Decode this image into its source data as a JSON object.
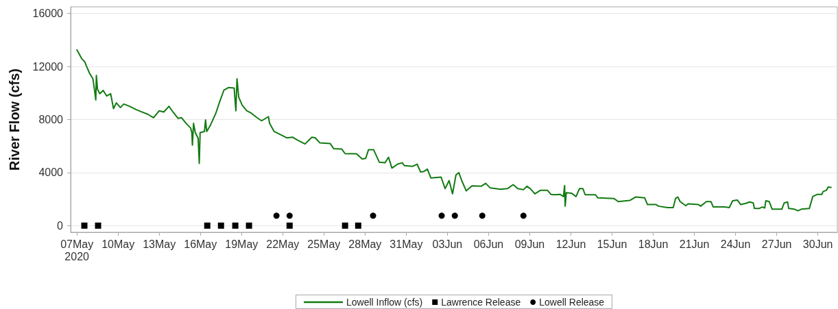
{
  "chart_data": {
    "type": "line",
    "ylabel": "River Flow (cfs)",
    "xlim": [
      "2020-05-06T13:00",
      "2020-07-01T10:00"
    ],
    "xticks": [
      {
        "value": "2020-05-07",
        "label": "07May\n2020"
      },
      {
        "value": "2020-05-10",
        "label": "10May"
      },
      {
        "value": "2020-05-13",
        "label": "13May"
      },
      {
        "value": "2020-05-16",
        "label": "16May"
      },
      {
        "value": "2020-05-19",
        "label": "19May"
      },
      {
        "value": "2020-05-22",
        "label": "22May"
      },
      {
        "value": "2020-05-25",
        "label": "25May"
      },
      {
        "value": "2020-05-28",
        "label": "28May"
      },
      {
        "value": "2020-05-31",
        "label": "31May"
      },
      {
        "value": "2020-06-03",
        "label": "03Jun"
      },
      {
        "value": "2020-06-06",
        "label": "06Jun"
      },
      {
        "value": "2020-06-09",
        "label": "09Jun"
      },
      {
        "value": "2020-06-12",
        "label": "12Jun"
      },
      {
        "value": "2020-06-15",
        "label": "15Jun"
      },
      {
        "value": "2020-06-18",
        "label": "18Jun"
      },
      {
        "value": "2020-06-21",
        "label": "21Jun"
      },
      {
        "value": "2020-06-24",
        "label": "24Jun"
      },
      {
        "value": "2020-06-27",
        "label": "27Jun"
      },
      {
        "value": "2020-06-30",
        "label": "30Jun"
      }
    ],
    "ylim": [
      -500,
      16500
    ],
    "yticks": [
      0,
      4000,
      8000,
      12000,
      16000
    ],
    "grid": "y",
    "legend": "bottom",
    "series": [
      {
        "name": "Lowell Inflow (cfs)",
        "color": "#127a12",
        "x": [
          "2020-05-07T00:00",
          "2020-05-07T03:00",
          "2020-05-07T08:00",
          "2020-05-07T14:00",
          "2020-05-07T16:00",
          "2020-05-07T22:00",
          "2020-05-08T04:00",
          "2020-05-08T06:00",
          "2020-05-08T09:00",
          "2020-05-08T10:00",
          "2020-05-08T12:00",
          "2020-05-08T16:00",
          "2020-05-08T22:00",
          "2020-05-09T04:00",
          "2020-05-09T11:00",
          "2020-05-09T16:00",
          "2020-05-09T21:00",
          "2020-05-10T04:00",
          "2020-05-10T10:00",
          "2020-05-10T20:00",
          "2020-05-11T08:00",
          "2020-05-11T16:00",
          "2020-05-12T04:00",
          "2020-05-12T14:00",
          "2020-05-13T00:00",
          "2020-05-13T08:00",
          "2020-05-13T17:00",
          "2020-05-14T00:00",
          "2020-05-14T09:00",
          "2020-05-14T15:00",
          "2020-05-14T23:00",
          "2020-05-15T07:00",
          "2020-05-15T09:00",
          "2020-05-15T10:00",
          "2020-05-15T12:00",
          "2020-05-15T15:00",
          "2020-05-15T20:00",
          "2020-05-15T22:00",
          "2020-05-15T23:30",
          "2020-05-16T07:00",
          "2020-05-16T09:00",
          "2020-05-16T11:00",
          "2020-05-16T17:00",
          "2020-05-17T03:00",
          "2020-05-17T09:00",
          "2020-05-17T17:00",
          "2020-05-18T01:00",
          "2020-05-18T11:00",
          "2020-05-18T14:00",
          "2020-05-18T16:00",
          "2020-05-18T19:00",
          "2020-05-19T01:00",
          "2020-05-19T09:00",
          "2020-05-19T17:00",
          "2020-05-20T03:00",
          "2020-05-20T11:00",
          "2020-05-20T23:00",
          "2020-05-21T01:00",
          "2020-05-21T09:00",
          "2020-05-21T21:00",
          "2020-05-22T07:00",
          "2020-05-22T17:00",
          "2020-05-23T01:00",
          "2020-05-23T15:00",
          "2020-05-24T03:00",
          "2020-05-24T09:00",
          "2020-05-24T17:00",
          "2020-05-25T11:00",
          "2020-05-25T17:00",
          "2020-05-26T07:00",
          "2020-05-26T13:00",
          "2020-05-27T09:00",
          "2020-05-27T19:00",
          "2020-05-28T01:00",
          "2020-05-28T06:00",
          "2020-05-28T15:00",
          "2020-05-29T01:00",
          "2020-05-29T11:00",
          "2020-05-29T17:00",
          "2020-05-29T23:00",
          "2020-05-30T09:00",
          "2020-05-30T17:00",
          "2020-05-30T21:00",
          "2020-05-31T11:00",
          "2020-05-31T19:00",
          "2020-06-01T01:00",
          "2020-06-01T07:00",
          "2020-06-01T13:00",
          "2020-06-01T19:00",
          "2020-06-02T13:00",
          "2020-06-02T20:00",
          "2020-06-03T03:00",
          "2020-06-03T09:00",
          "2020-06-03T15:00",
          "2020-06-03T20:00",
          "2020-06-04T01:00",
          "2020-06-04T09:00",
          "2020-06-04T19:00",
          "2020-06-05T11:00",
          "2020-06-05T19:00",
          "2020-06-06T03:00",
          "2020-06-06T21:00",
          "2020-06-07T09:00",
          "2020-06-07T19:00",
          "2020-06-08T03:00",
          "2020-06-08T13:00",
          "2020-06-08T19:00",
          "2020-06-09T01:00",
          "2020-06-09T09:00",
          "2020-06-09T19:00",
          "2020-06-10T07:00",
          "2020-06-10T13:00",
          "2020-06-10T19:00",
          "2020-06-11T05:00",
          "2020-06-11T11:00",
          "2020-06-11T13:00",
          "2020-06-11T14:00",
          "2020-06-11T16:00",
          "2020-06-12T01:00",
          "2020-06-12T09:00",
          "2020-06-12T15:00",
          "2020-06-12T21:00",
          "2020-06-13T01:00",
          "2020-06-13T19:00",
          "2020-06-13T23:00",
          "2020-06-15T03:00",
          "2020-06-15T11:00",
          "2020-06-16T07:00",
          "2020-06-16T17:00",
          "2020-06-17T09:00",
          "2020-06-17T14:00",
          "2020-06-18T05:00",
          "2020-06-18T09:00",
          "2020-06-19T01:00",
          "2020-06-19T11:00",
          "2020-06-19T15:00",
          "2020-06-19T19:00",
          "2020-06-19T23:00",
          "2020-06-20T09:00",
          "2020-06-20T13:00",
          "2020-06-21T07:00",
          "2020-06-21T11:00",
          "2020-06-21T21:00",
          "2020-06-22T05:00",
          "2020-06-22T09:00",
          "2020-06-23T05:00",
          "2020-06-23T13:00",
          "2020-06-23T19:00",
          "2020-06-24T03:00",
          "2020-06-24T09:00",
          "2020-06-24T17:00",
          "2020-06-25T01:00",
          "2020-06-25T07:00",
          "2020-06-25T09:00",
          "2020-06-25T17:00",
          "2020-06-25T23:00",
          "2020-06-26T03:00",
          "2020-06-26T05:00",
          "2020-06-26T11:00",
          "2020-06-26T16:00",
          "2020-06-27T09:00",
          "2020-06-27T13:00",
          "2020-06-27T19:00",
          "2020-06-27T21:00",
          "2020-06-28T07:00",
          "2020-06-28T13:00",
          "2020-06-28T19:00",
          "2020-06-29T09:00",
          "2020-06-29T15:00",
          "2020-06-29T23:00",
          "2020-06-30T07:00",
          "2020-06-30T09:00",
          "2020-06-30T15:00",
          "2020-06-30T18:00",
          "2020-06-30T23:00"
        ],
        "values": [
          13250,
          13020,
          12620,
          12330,
          12100,
          11500,
          11070,
          10470,
          9480,
          11330,
          10290,
          9950,
          10200,
          9780,
          9950,
          8830,
          9260,
          8910,
          9170,
          9000,
          8740,
          8600,
          8400,
          8140,
          8660,
          8570,
          9000,
          8570,
          8090,
          8140,
          7710,
          7360,
          7020,
          6070,
          7710,
          7020,
          6590,
          4690,
          7020,
          7100,
          7970,
          7100,
          7530,
          8480,
          9260,
          10210,
          10410,
          10380,
          8660,
          11070,
          9690,
          9090,
          8660,
          8480,
          8140,
          7910,
          8220,
          7710,
          7100,
          6840,
          6620,
          6670,
          6470,
          6160,
          6670,
          6620,
          6240,
          6190,
          5810,
          5780,
          5430,
          5410,
          5030,
          5070,
          5720,
          5720,
          4780,
          4740,
          5160,
          4340,
          4640,
          4740,
          4520,
          4470,
          4640,
          4050,
          4090,
          4260,
          3600,
          3660,
          2790,
          3400,
          2400,
          3830,
          4000,
          3400,
          2620,
          3000,
          2970,
          3190,
          2840,
          2740,
          2790,
          3090,
          2790,
          2710,
          2970,
          2790,
          2400,
          2670,
          2670,
          2360,
          2330,
          2360,
          2190,
          3020,
          1470,
          2480,
          2450,
          2190,
          2790,
          2790,
          2330,
          2330,
          2100,
          2050,
          1810,
          1900,
          2160,
          2100,
          1590,
          1590,
          1470,
          1360,
          1360,
          2050,
          2160,
          1810,
          1500,
          1640,
          1590,
          1470,
          1810,
          1810,
          1410,
          1410,
          1360,
          1880,
          1930,
          1590,
          1670,
          1790,
          1710,
          1290,
          1290,
          1410,
          1330,
          1880,
          1810,
          1240,
          1240,
          1710,
          1790,
          1290,
          1240,
          1120,
          1240,
          1290,
          2190,
          2360,
          2360,
          2570,
          2670,
          2910,
          2880
        ]
      },
      {
        "name": "Lawrence Release",
        "type": "scatter",
        "color": "#000000",
        "marker": "square",
        "x": [
          "2020-05-07T13:00",
          "2020-05-08T13:00",
          "2020-05-16T12:00",
          "2020-05-17T12:00",
          "2020-05-18T13:00",
          "2020-05-19T13:00",
          "2020-05-22T12:00",
          "2020-05-26T13:00",
          "2020-05-27T12:00"
        ],
        "values": [
          0,
          0,
          0,
          0,
          0,
          0,
          0,
          0,
          0
        ]
      },
      {
        "name": "Lowell Release",
        "type": "scatter",
        "color": "#000000",
        "marker": "circle",
        "x": [
          "2020-05-21T13:00",
          "2020-05-22T12:00",
          "2020-05-28T14:00",
          "2020-06-02T14:00",
          "2020-06-03T13:00",
          "2020-06-05T13:00",
          "2020-06-08T13:00"
        ],
        "values": [
          750,
          750,
          750,
          750,
          750,
          750,
          750
        ]
      }
    ]
  }
}
